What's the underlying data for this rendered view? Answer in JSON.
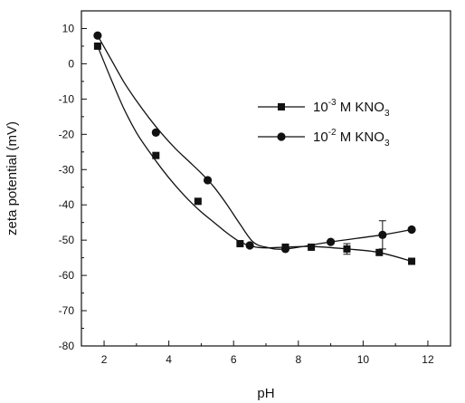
{
  "chart_data": {
    "type": "scatter",
    "title": "",
    "xlabel": "pH",
    "ylabel": "zeta potential (mV)",
    "xlim": [
      1.3,
      12.7
    ],
    "ylim": [
      -80,
      15
    ],
    "xticks": [
      2,
      4,
      6,
      8,
      10,
      12
    ],
    "yticks": [
      10,
      0,
      -10,
      -20,
      -30,
      -40,
      -50,
      -60,
      -70,
      -80
    ],
    "grid": false,
    "legend_position": "right-middle",
    "series": [
      {
        "name": "10⁻³ M KNO₃",
        "name_parts": {
          "base": "10",
          "sup": "-3",
          "mid": " M KNO",
          "sub": "3"
        },
        "marker": "square",
        "x": [
          1.8,
          3.6,
          4.9,
          6.2,
          7.6,
          8.4,
          9.5,
          10.5,
          11.5
        ],
        "y": [
          5,
          -26,
          -39,
          -51,
          -52,
          -52,
          -52.5,
          -53.5,
          -56
        ],
        "error_y": [
          0,
          0,
          0,
          0,
          0,
          0,
          1.5,
          0,
          0
        ],
        "curve_x": [
          1.8,
          2.2,
          2.6,
          3.0,
          3.4,
          3.8,
          4.2,
          4.6,
          5.0,
          5.4,
          5.8,
          6.2,
          6.6,
          7.0,
          7.6,
          8.4,
          9.5,
          10.5,
          11.5
        ],
        "curve_y": [
          5,
          -4,
          -12.5,
          -19.5,
          -25,
          -30,
          -34.5,
          -38.5,
          -42,
          -45,
          -48,
          -50.5,
          -51.8,
          -52.2,
          -52,
          -51.8,
          -52.5,
          -53.5,
          -56
        ]
      },
      {
        "name": "10⁻² M KNO₃",
        "name_parts": {
          "base": "10",
          "sup": "-2",
          "mid": " M KNO",
          "sub": "3"
        },
        "marker": "circle",
        "x": [
          1.8,
          3.6,
          5.2,
          6.5,
          7.6,
          9.0,
          10.6,
          11.5
        ],
        "y": [
          8,
          -19.5,
          -33,
          -51.5,
          -52.5,
          -50.5,
          -48.5,
          -47
        ],
        "error_y": [
          0,
          0,
          0,
          0,
          0,
          0,
          4,
          0
        ],
        "curve_x": [
          1.8,
          2.2,
          2.6,
          3.0,
          3.4,
          3.8,
          4.2,
          4.6,
          5.0,
          5.4,
          5.8,
          6.2,
          6.6,
          7.0,
          7.6,
          9.0,
          10.6,
          11.5
        ],
        "curve_y": [
          8,
          1.5,
          -5,
          -10.5,
          -15.5,
          -20,
          -24,
          -27.5,
          -31,
          -35,
          -40,
          -45.5,
          -50.5,
          -52,
          -52.5,
          -50.5,
          -48.5,
          -47
        ]
      }
    ]
  }
}
